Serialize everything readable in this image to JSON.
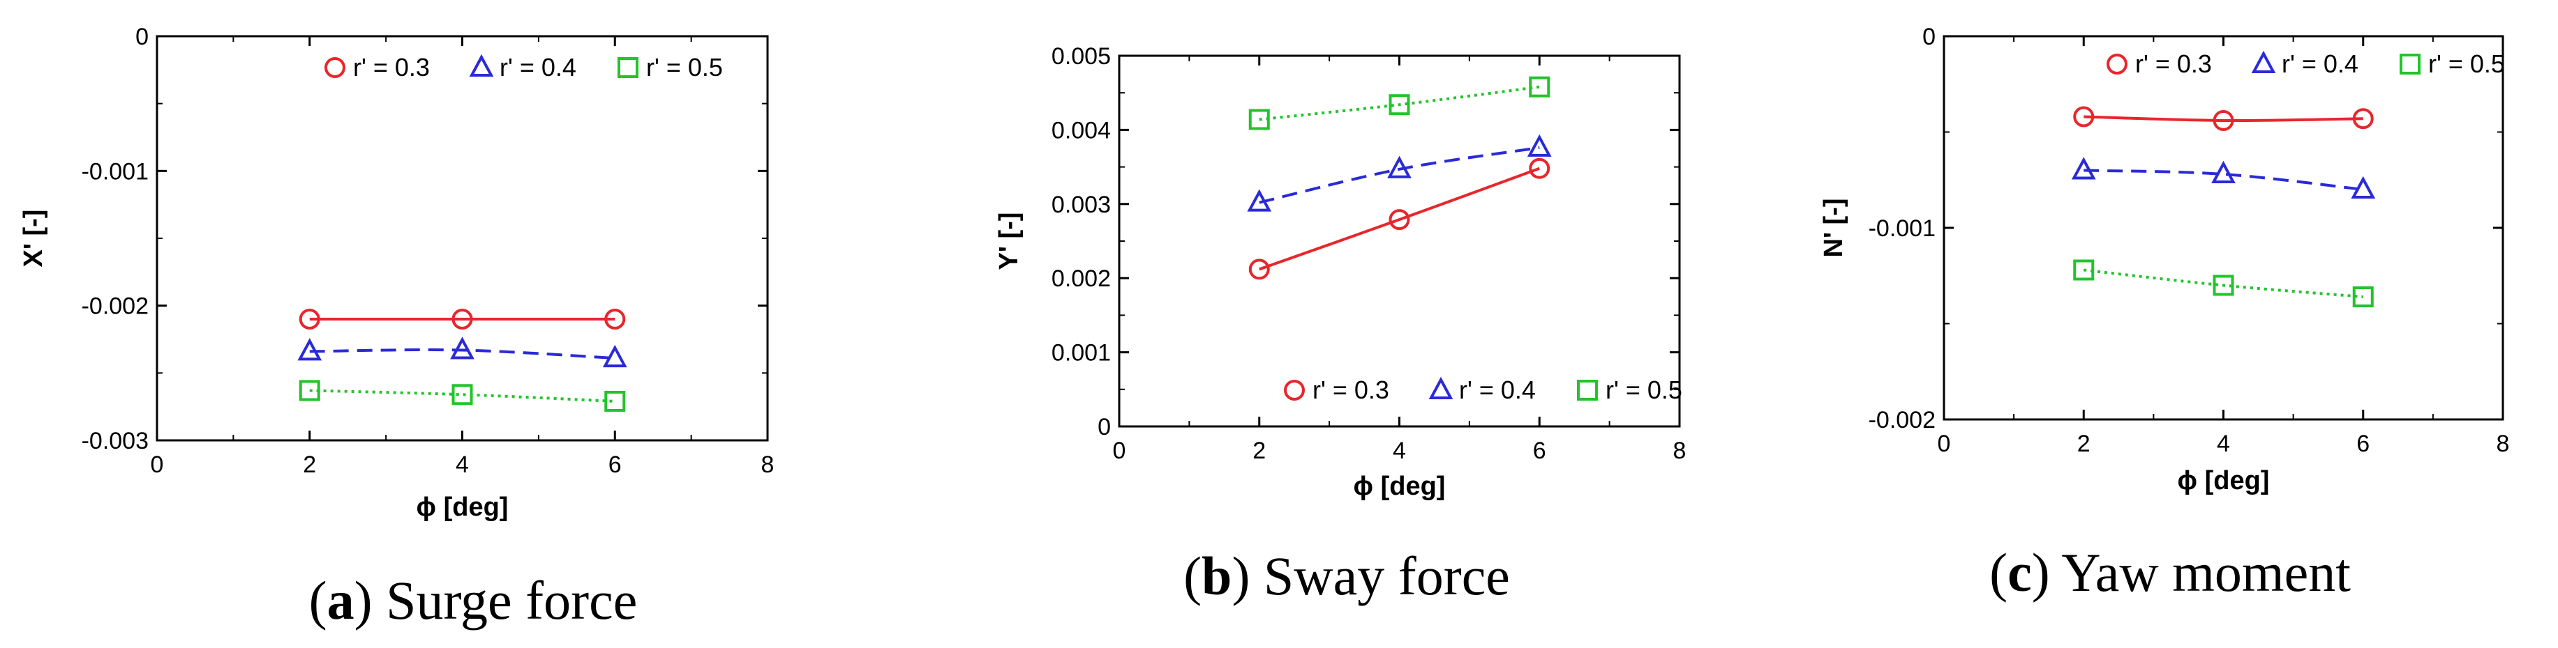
{
  "chart_data": [
    {
      "type": "line",
      "caption_letter": "a",
      "caption_text": "Surge force",
      "xlabel": "ϕ [deg]",
      "ylabel": "X' [-]",
      "xlim": [
        0,
        8
      ],
      "ylim": [
        -0.003,
        0
      ],
      "x_ticks": [
        0,
        2,
        4,
        6,
        8
      ],
      "y_ticks": [
        0,
        -0.001,
        -0.002,
        -0.003
      ],
      "y_tick_labels": [
        "0",
        "-0.001",
        "-0.002",
        "-0.003"
      ],
      "legend_position": "top-right",
      "x": [
        2,
        4,
        6
      ],
      "series": [
        {
          "name": "r' = 0.3",
          "values": [
            -0.0021,
            -0.0021,
            -0.0021
          ],
          "color": "#e8262b",
          "marker": "circle",
          "line_style": "solid"
        },
        {
          "name": "r' = 0.4",
          "values": [
            -0.00234,
            -0.00233,
            -0.00239
          ],
          "color": "#2a2ad8",
          "marker": "triangle",
          "line_style": "dashed"
        },
        {
          "name": "r' = 0.5",
          "values": [
            -0.00263,
            -0.00266,
            -0.00271
          ],
          "color": "#22c42a",
          "marker": "square",
          "line_style": "dotted"
        }
      ]
    },
    {
      "type": "line",
      "caption_letter": "b",
      "caption_text": "Sway force",
      "xlabel": "ϕ [deg]",
      "ylabel": "Y' [-]",
      "xlim": [
        0,
        8
      ],
      "ylim": [
        0,
        0.005
      ],
      "x_ticks": [
        0,
        2,
        4,
        6,
        8
      ],
      "y_ticks": [
        0,
        0.001,
        0.002,
        0.003,
        0.004,
        0.005
      ],
      "y_tick_labels": [
        "0",
        "0.001",
        "0.002",
        "0.003",
        "0.004",
        "0.005"
      ],
      "legend_position": "bottom-right",
      "x": [
        2,
        4,
        6
      ],
      "series": [
        {
          "name": "r' = 0.3",
          "values": [
            0.00212,
            0.00279,
            0.00348
          ],
          "color": "#e8262b",
          "marker": "circle",
          "line_style": "solid"
        },
        {
          "name": "r' = 0.4",
          "values": [
            0.00302,
            0.00347,
            0.00376
          ],
          "color": "#2a2ad8",
          "marker": "triangle",
          "line_style": "dashed"
        },
        {
          "name": "r' = 0.5",
          "values": [
            0.00414,
            0.00434,
            0.00458
          ],
          "color": "#22c42a",
          "marker": "square",
          "line_style": "dotted"
        }
      ]
    },
    {
      "type": "line",
      "caption_letter": "c",
      "caption_text": "Yaw moment",
      "xlabel": "ϕ [deg]",
      "ylabel": "N' [-]",
      "xlim": [
        0,
        8
      ],
      "ylim": [
        -0.002,
        0
      ],
      "x_ticks": [
        0,
        2,
        4,
        6,
        8
      ],
      "y_ticks": [
        0,
        -0.001,
        -0.002
      ],
      "y_tick_labels": [
        "0",
        "-0.001",
        "-0.002"
      ],
      "legend_position": "top-right",
      "x": [
        2,
        4,
        6
      ],
      "series": [
        {
          "name": "r' = 0.3",
          "values": [
            -0.00042,
            -0.00044,
            -0.00043
          ],
          "color": "#e8262b",
          "marker": "circle",
          "line_style": "solid"
        },
        {
          "name": "r' = 0.4",
          "values": [
            -0.0007,
            -0.00072,
            -0.0008
          ],
          "color": "#2a2ad8",
          "marker": "triangle",
          "line_style": "dashed"
        },
        {
          "name": "r' = 0.5",
          "values": [
            -0.00122,
            -0.0013,
            -0.00136
          ],
          "color": "#22c42a",
          "marker": "square",
          "line_style": "dotted"
        }
      ]
    }
  ]
}
